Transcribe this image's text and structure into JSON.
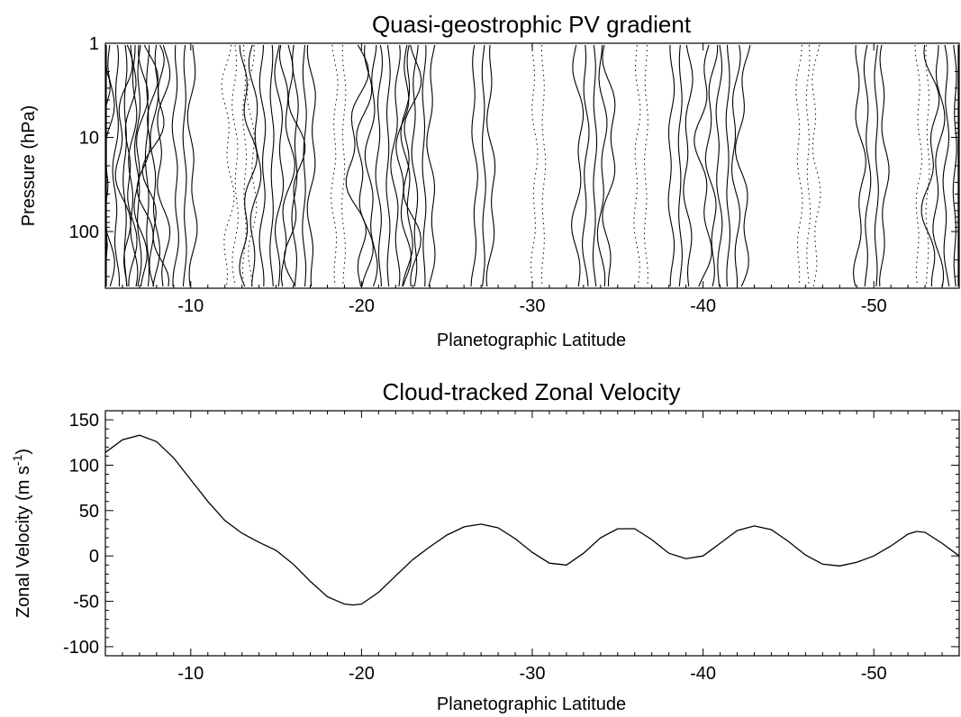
{
  "chart_data": [
    {
      "type": "contour",
      "title": "Quasi-geostrophic PV gradient",
      "xlabel": "Planetographic Latitude",
      "ylabel": "Pressure (hPa)",
      "xlim": [
        -5,
        -55
      ],
      "ylim": [
        1,
        400
      ],
      "yscale": "log",
      "x_ticks": [
        -10,
        -20,
        -30,
        -40,
        -50
      ],
      "y_ticks": [
        1,
        10,
        100
      ],
      "contour_columns": [
        {
          "lat": -6.0,
          "count": 9,
          "style": "solid"
        },
        {
          "lat": -7.3,
          "count": 6,
          "style": "solid"
        },
        {
          "lat": -9.5,
          "count": 3,
          "style": "solid"
        },
        {
          "lat": -13.0,
          "count": 4,
          "style": "dotted"
        },
        {
          "lat": -14.6,
          "count": 7,
          "style": "solid"
        },
        {
          "lat": -16.5,
          "count": 3,
          "style": "solid"
        },
        {
          "lat": -18.8,
          "count": 2,
          "style": "dotted"
        },
        {
          "lat": -21.4,
          "count": 8,
          "style": "solid"
        },
        {
          "lat": -23.5,
          "count": 4,
          "style": "solid"
        },
        {
          "lat": -27.0,
          "count": 3,
          "style": "solid"
        },
        {
          "lat": -30.5,
          "count": 2,
          "style": "dotted"
        },
        {
          "lat": -33.5,
          "count": 5,
          "style": "solid"
        },
        {
          "lat": -36.5,
          "count": 2,
          "style": "dotted"
        },
        {
          "lat": -38.5,
          "count": 3,
          "style": "solid"
        },
        {
          "lat": -41.3,
          "count": 6,
          "style": "solid"
        },
        {
          "lat": -46.0,
          "count": 3,
          "style": "dotted"
        },
        {
          "lat": -50.0,
          "count": 4,
          "style": "solid"
        },
        {
          "lat": -53.0,
          "count": 2,
          "style": "dotted"
        },
        {
          "lat": -54.6,
          "count": 6,
          "style": "solid"
        }
      ]
    },
    {
      "type": "line",
      "title": "Cloud-tracked Zonal Velocity",
      "xlabel": "Planetographic Latitude",
      "ylabel": "Zonal Velocity (m s",
      "ylabel_superscript": "-1",
      "ylabel_suffix": ")",
      "xlim": [
        -5,
        -55
      ],
      "ylim": [
        -110,
        160
      ],
      "x_ticks": [
        -10,
        -20,
        -30,
        -40,
        -50
      ],
      "y_ticks": [
        150,
        100,
        50,
        0,
        -50,
        -100
      ],
      "series": [
        {
          "x": [
            -5,
            -6,
            -7,
            -8,
            -9,
            -10,
            -11,
            -12,
            -13,
            -14,
            -15,
            -16,
            -17,
            -18,
            -19,
            -19.5,
            -20,
            -21,
            -22,
            -23,
            -24,
            -25,
            -26,
            -27,
            -28,
            -29,
            -30,
            -31,
            -32,
            -33,
            -34,
            -35,
            -36,
            -37,
            -38,
            -39,
            -40,
            -41,
            -42,
            -43,
            -44,
            -45,
            -46,
            -47,
            -48,
            -49,
            -50,
            -51,
            -52,
            -52.5,
            -53,
            -54,
            -55
          ],
          "y": [
            114,
            128,
            133,
            126,
            108,
            84,
            60,
            39,
            25,
            15,
            6,
            -9,
            -28,
            -45,
            -53,
            -54,
            -53,
            -40,
            -22,
            -4,
            10,
            23,
            32,
            35,
            31,
            19,
            4,
            -8,
            -10,
            3,
            20,
            30,
            30,
            18,
            3,
            -3,
            0,
            14,
            28,
            33,
            29,
            16,
            1,
            -9,
            -11,
            -7,
            0,
            11,
            24,
            27,
            26,
            14,
            0
          ]
        }
      ]
    }
  ]
}
